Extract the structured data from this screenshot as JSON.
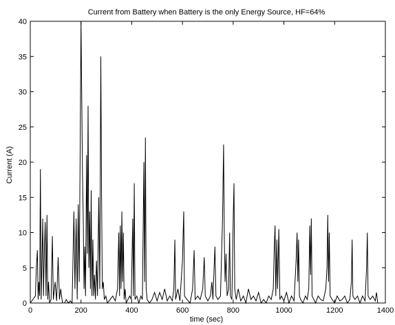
{
  "chart_data": {
    "type": "line",
    "title": "Current from Battery when Battery is the only Energy Source, HF=64%",
    "xlabel": "time (sec)",
    "ylabel": "Current (A)",
    "xlim": [
      0,
      1400
    ],
    "ylim": [
      0,
      40
    ],
    "xticks": [
      0,
      200,
      400,
      600,
      800,
      1000,
      1200,
      1400
    ],
    "yticks": [
      0,
      5,
      10,
      15,
      20,
      25,
      30,
      35,
      40
    ],
    "grid": false,
    "legend": "none",
    "line_color": "#000000",
    "series": [
      {
        "values": [
          [
            0,
            0
          ],
          [
            20,
            1
          ],
          [
            24,
            5
          ],
          [
            28,
            7.5
          ],
          [
            31,
            0.5
          ],
          [
            34,
            3
          ],
          [
            37,
            1
          ],
          [
            40,
            19
          ],
          [
            43,
            0.5
          ],
          [
            46,
            6
          ],
          [
            49,
            12
          ],
          [
            52,
            1
          ],
          [
            56,
            8
          ],
          [
            59,
            11.5
          ],
          [
            62,
            1
          ],
          [
            66,
            12.5
          ],
          [
            69,
            0.5
          ],
          [
            72,
            3
          ],
          [
            76,
            0
          ],
          [
            82,
            0.5
          ],
          [
            87,
            9.5
          ],
          [
            91,
            0.5
          ],
          [
            98,
            3
          ],
          [
            104,
            0.3
          ],
          [
            110,
            6.5
          ],
          [
            115,
            0.5
          ],
          [
            120,
            2
          ],
          [
            127,
            0
          ],
          [
            135,
            0
          ],
          [
            142,
            0.5
          ],
          [
            150,
            0
          ],
          [
            158,
            0.3
          ],
          [
            165,
            0
          ],
          [
            172,
            13
          ],
          [
            176,
            2
          ],
          [
            181,
            12
          ],
          [
            185,
            0.5
          ],
          [
            189,
            14
          ],
          [
            193,
            3
          ],
          [
            197,
            23
          ],
          [
            200,
            40
          ],
          [
            203,
            29
          ],
          [
            206,
            18
          ],
          [
            209,
            12
          ],
          [
            212,
            2
          ],
          [
            215,
            8
          ],
          [
            218,
            1
          ],
          [
            222,
            21
          ],
          [
            225,
            7
          ],
          [
            228,
            28
          ],
          [
            231,
            5
          ],
          [
            234,
            13
          ],
          [
            237,
            2
          ],
          [
            240,
            16
          ],
          [
            243,
            1
          ],
          [
            247,
            9
          ],
          [
            250,
            1
          ],
          [
            253,
            4
          ],
          [
            257,
            0.5
          ],
          [
            261,
            6
          ],
          [
            265,
            1
          ],
          [
            270,
            15
          ],
          [
            274,
            2
          ],
          [
            278,
            35
          ],
          [
            281,
            15
          ],
          [
            284,
            2
          ],
          [
            288,
            3
          ],
          [
            292,
            0.5
          ],
          [
            298,
            1
          ],
          [
            304,
            0
          ],
          [
            315,
            0.5
          ],
          [
            325,
            1
          ],
          [
            335,
            0.3
          ],
          [
            344,
            2
          ],
          [
            349,
            10
          ],
          [
            352,
            1
          ],
          [
            355,
            11
          ],
          [
            358,
            2
          ],
          [
            361,
            13
          ],
          [
            364,
            3
          ],
          [
            367,
            10
          ],
          [
            370,
            0.5
          ],
          [
            374,
            2
          ],
          [
            378,
            0
          ],
          [
            385,
            0.5
          ],
          [
            392,
            1
          ],
          [
            398,
            0.5
          ],
          [
            404,
            12
          ],
          [
            407,
            1
          ],
          [
            410,
            17
          ],
          [
            413,
            0.5
          ],
          [
            420,
            1
          ],
          [
            428,
            0
          ],
          [
            436,
            1
          ],
          [
            442,
            0.5
          ],
          [
            448,
            20
          ],
          [
            451,
            3
          ],
          [
            454,
            23.5
          ],
          [
            457,
            2
          ],
          [
            461,
            0.5
          ],
          [
            470,
            0
          ],
          [
            480,
            0.5
          ],
          [
            490,
            1.5
          ],
          [
            500,
            0.3
          ],
          [
            510,
            1.5
          ],
          [
            520,
            0.5
          ],
          [
            530,
            2
          ],
          [
            540,
            0.3
          ],
          [
            550,
            1
          ],
          [
            560,
            0.3
          ],
          [
            566,
            2
          ],
          [
            570,
            9
          ],
          [
            573,
            0.5
          ],
          [
            582,
            2
          ],
          [
            590,
            0.3
          ],
          [
            600,
            6
          ],
          [
            605,
            13
          ],
          [
            608,
            1
          ],
          [
            618,
            0.5
          ],
          [
            630,
            0
          ],
          [
            640,
            2
          ],
          [
            646,
            7.5
          ],
          [
            650,
            0.5
          ],
          [
            660,
            1
          ],
          [
            670,
            0.5
          ],
          [
            680,
            2
          ],
          [
            686,
            6.5
          ],
          [
            690,
            1
          ],
          [
            700,
            0.3
          ],
          [
            710,
            1
          ],
          [
            716,
            3
          ],
          [
            720,
            0.5
          ],
          [
            728,
            8
          ],
          [
            732,
            1
          ],
          [
            740,
            0.5
          ],
          [
            750,
            1
          ],
          [
            758,
            12
          ],
          [
            762,
            22.5
          ],
          [
            765,
            9
          ],
          [
            768,
            3
          ],
          [
            772,
            7
          ],
          [
            776,
            1
          ],
          [
            782,
            2
          ],
          [
            786,
            10
          ],
          [
            789,
            1
          ],
          [
            795,
            0.5
          ],
          [
            800,
            12
          ],
          [
            803,
            17
          ],
          [
            806,
            2
          ],
          [
            812,
            0.5
          ],
          [
            820,
            2
          ],
          [
            830,
            0.3
          ],
          [
            840,
            1
          ],
          [
            850,
            0
          ],
          [
            860,
            2
          ],
          [
            870,
            0.5
          ],
          [
            880,
            1
          ],
          [
            890,
            0.3
          ],
          [
            900,
            1.5
          ],
          [
            910,
            0
          ],
          [
            920,
            0.5
          ],
          [
            930,
            0
          ],
          [
            940,
            1
          ],
          [
            950,
            0.5
          ],
          [
            958,
            2
          ],
          [
            962,
            8
          ],
          [
            965,
            11
          ],
          [
            968,
            1
          ],
          [
            972,
            9
          ],
          [
            975,
            2
          ],
          [
            980,
            10.5
          ],
          [
            984,
            0.5
          ],
          [
            990,
            1
          ],
          [
            1000,
            0.3
          ],
          [
            1010,
            1.5
          ],
          [
            1020,
            0
          ],
          [
            1030,
            1
          ],
          [
            1040,
            0.3
          ],
          [
            1048,
            6
          ],
          [
            1052,
            10
          ],
          [
            1055,
            3
          ],
          [
            1058,
            9
          ],
          [
            1061,
            1
          ],
          [
            1066,
            0.5
          ],
          [
            1075,
            0
          ],
          [
            1085,
            1
          ],
          [
            1092,
            0.5
          ],
          [
            1098,
            2
          ],
          [
            1102,
            11
          ],
          [
            1105,
            4
          ],
          [
            1108,
            12
          ],
          [
            1111,
            1
          ],
          [
            1118,
            0.5
          ],
          [
            1125,
            0
          ],
          [
            1135,
            1
          ],
          [
            1145,
            0.5
          ],
          [
            1155,
            0.3
          ],
          [
            1165,
            2
          ],
          [
            1170,
            5
          ],
          [
            1173,
            12.5
          ],
          [
            1176,
            3
          ],
          [
            1179,
            10
          ],
          [
            1182,
            1
          ],
          [
            1190,
            0.5
          ],
          [
            1200,
            0
          ],
          [
            1210,
            1
          ],
          [
            1220,
            0.3
          ],
          [
            1230,
            0.5
          ],
          [
            1240,
            1
          ],
          [
            1250,
            0
          ],
          [
            1260,
            0.5
          ],
          [
            1266,
            3
          ],
          [
            1269,
            9
          ],
          [
            1272,
            1
          ],
          [
            1280,
            0.5
          ],
          [
            1290,
            1
          ],
          [
            1300,
            0
          ],
          [
            1310,
            1
          ],
          [
            1320,
            0.3
          ],
          [
            1326,
            5
          ],
          [
            1329,
            10
          ],
          [
            1332,
            1
          ],
          [
            1340,
            0.5
          ],
          [
            1350,
            1
          ],
          [
            1360,
            0.3
          ],
          [
            1365,
            1.5
          ],
          [
            1370,
            0
          ]
        ]
      }
    ]
  }
}
